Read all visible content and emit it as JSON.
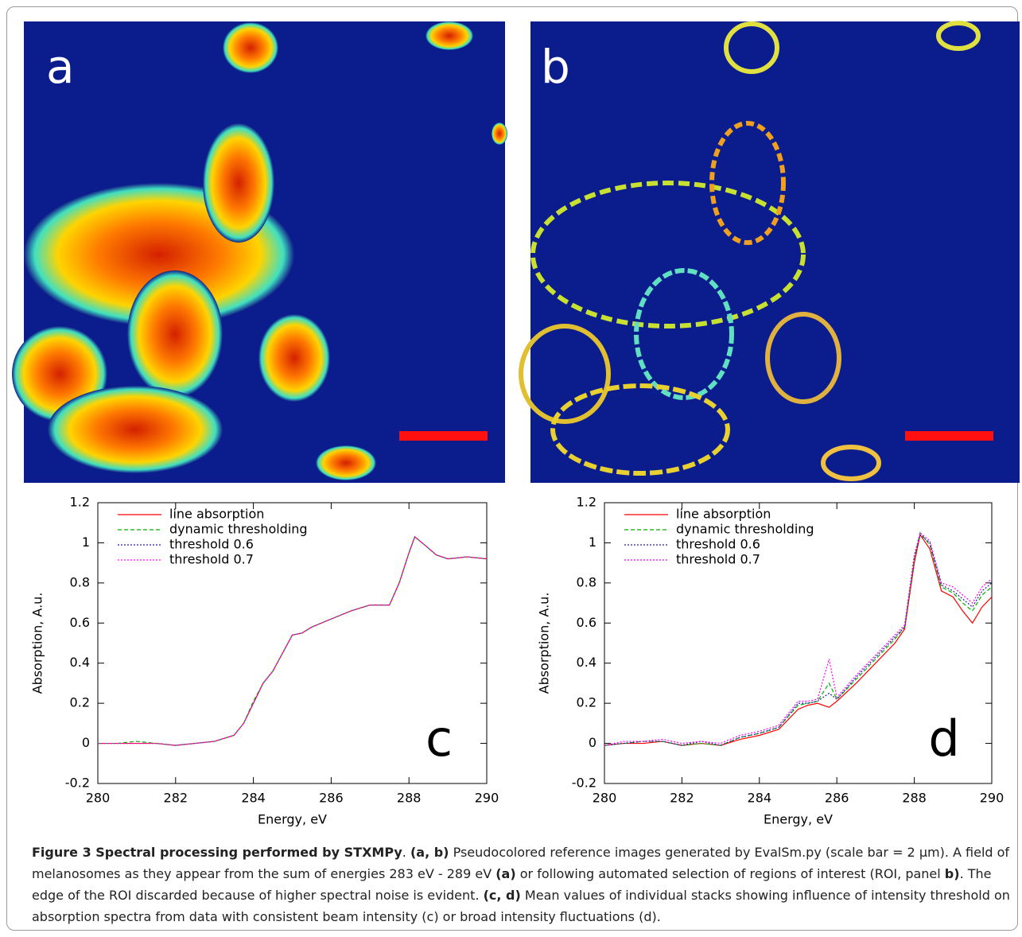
{
  "panels": [
    {
      "label": "a"
    },
    {
      "label": "b"
    }
  ],
  "chart_data": [
    {
      "type": "line",
      "annotation": "c",
      "xlabel": "Energy, eV",
      "ylabel": "Absorption, A.u.",
      "x": [
        280,
        280.5,
        281,
        281.5,
        282,
        282.5,
        283,
        283.5,
        283.75,
        284,
        284.25,
        284.5,
        284.75,
        285,
        285.25,
        285.5,
        286,
        286.5,
        287,
        287.5,
        287.75,
        288,
        288.15,
        288.4,
        288.7,
        289,
        289.5,
        290
      ],
      "series": [
        {
          "name": "line absorption",
          "color": "#ff0000",
          "line_style": "solid",
          "values": [
            0,
            0,
            0,
            0,
            -0.01,
            0,
            0.01,
            0.04,
            0.1,
            0.2,
            0.3,
            0.36,
            0.45,
            0.54,
            0.55,
            0.58,
            0.62,
            0.66,
            0.69,
            0.69,
            0.8,
            0.95,
            1.03,
            0.99,
            0.94,
            0.92,
            0.93,
            0.92
          ]
        },
        {
          "name": "dynamic thresholding",
          "color": "#00b000",
          "line_style": "dashed",
          "values": [
            0,
            0,
            0.01,
            0,
            -0.01,
            0,
            0.01,
            0.04,
            0.1,
            0.21,
            0.3,
            0.36,
            0.45,
            0.54,
            0.55,
            0.58,
            0.62,
            0.66,
            0.69,
            0.69,
            0.8,
            0.95,
            1.03,
            0.99,
            0.94,
            0.92,
            0.93,
            0.92
          ]
        },
        {
          "name": "threshold 0.6",
          "color": "#2020a0",
          "line_style": "dotted",
          "values": [
            0,
            0,
            0,
            0,
            -0.01,
            0,
            0.01,
            0.04,
            0.1,
            0.2,
            0.3,
            0.36,
            0.45,
            0.54,
            0.55,
            0.58,
            0.62,
            0.66,
            0.69,
            0.69,
            0.8,
            0.95,
            1.03,
            0.99,
            0.94,
            0.92,
            0.93,
            0.92
          ]
        },
        {
          "name": "threshold 0.7",
          "color": "#ff00ff",
          "line_style": "dotted",
          "values": [
            0,
            0,
            0,
            0,
            -0.01,
            0,
            0.01,
            0.04,
            0.1,
            0.2,
            0.3,
            0.36,
            0.45,
            0.54,
            0.55,
            0.58,
            0.62,
            0.66,
            0.69,
            0.69,
            0.8,
            0.95,
            1.03,
            0.99,
            0.94,
            0.92,
            0.93,
            0.92
          ]
        }
      ],
      "xlim": [
        280,
        290
      ],
      "xticks": [
        280,
        282,
        284,
        286,
        288,
        290
      ],
      "ylim": [
        -0.2,
        1.2
      ],
      "yticks": [
        -0.2,
        0,
        0.2,
        0.4,
        0.6,
        0.8,
        1,
        1.2
      ]
    },
    {
      "type": "line",
      "annotation": "d",
      "xlabel": "Energy, eV",
      "ylabel": "Absorption, A.u.",
      "x": [
        280,
        280.5,
        281,
        281.5,
        282,
        282.5,
        283,
        283.5,
        284,
        284.5,
        285,
        285.25,
        285.5,
        285.8,
        286,
        286.5,
        287,
        287.5,
        287.75,
        288,
        288.15,
        288.4,
        288.7,
        289,
        289.25,
        289.5,
        289.75,
        290
      ],
      "series": [
        {
          "name": "line absorption",
          "color": "#ff0000",
          "line_style": "solid",
          "values": [
            -0.01,
            0,
            0,
            0.01,
            -0.01,
            0,
            -0.01,
            0.02,
            0.04,
            0.07,
            0.17,
            0.19,
            0.2,
            0.18,
            0.21,
            0.3,
            0.4,
            0.5,
            0.57,
            0.9,
            1.04,
            0.97,
            0.76,
            0.73,
            0.66,
            0.6,
            0.68,
            0.73
          ]
        },
        {
          "name": "dynamic thresholding",
          "color": "#00b000",
          "line_style": "dashed",
          "values": [
            -0.01,
            0,
            0.01,
            0.01,
            -0.01,
            0,
            -0.01,
            0.03,
            0.05,
            0.08,
            0.19,
            0.2,
            0.21,
            0.3,
            0.22,
            0.32,
            0.42,
            0.52,
            0.58,
            0.92,
            1.05,
            0.99,
            0.78,
            0.75,
            0.7,
            0.66,
            0.74,
            0.78
          ]
        },
        {
          "name": "threshold 0.6",
          "color": "#2020a0",
          "line_style": "dotted",
          "values": [
            -0.01,
            0,
            0.01,
            0.01,
            -0.01,
            0.01,
            -0.01,
            0.03,
            0.05,
            0.08,
            0.2,
            0.2,
            0.21,
            0.25,
            0.22,
            0.33,
            0.43,
            0.53,
            0.58,
            0.93,
            1.04,
            1,
            0.79,
            0.76,
            0.72,
            0.68,
            0.76,
            0.8
          ]
        },
        {
          "name": "threshold 0.7",
          "color": "#ff00ff",
          "line_style": "dotted",
          "values": [
            -0.01,
            0.01,
            0.01,
            0.02,
            0,
            0.01,
            0,
            0.04,
            0.06,
            0.09,
            0.21,
            0.21,
            0.22,
            0.42,
            0.23,
            0.34,
            0.44,
            0.54,
            0.59,
            0.94,
            1.05,
            1.01,
            0.8,
            0.78,
            0.74,
            0.7,
            0.78,
            0.82
          ]
        }
      ],
      "xlim": [
        280,
        290
      ],
      "xticks": [
        280,
        282,
        284,
        286,
        288,
        290
      ],
      "ylim": [
        -0.2,
        1.2
      ],
      "yticks": [
        -0.2,
        0,
        0.2,
        0.4,
        0.6,
        0.8,
        1,
        1.2
      ]
    }
  ],
  "caption": [
    {
      "text": "Figure 3 Spectral processing performed by STXMPy",
      "bold": true
    },
    {
      "text": ". ",
      "bold": false
    },
    {
      "text": "(a, b)",
      "bold": true
    },
    {
      "text": " Pseudocolored reference images generated by EvalSm.py (scale bar = 2 µm). A field of melanosomes as they appear from the sum of energies 283 eV - 289 eV ",
      "bold": false
    },
    {
      "text": "(a)",
      "bold": true
    },
    {
      "text": " or following automated selection of regions of interest (ROI, panel ",
      "bold": false
    },
    {
      "text": "b)",
      "bold": true
    },
    {
      "text": ". The edge of the ROI discarded because of higher spectral noise is evident. ",
      "bold": false
    },
    {
      "text": "(c, d)",
      "bold": true
    },
    {
      "text": " Mean values of individual stacks showing influence of intensity threshold on absorption spectra from data with consistent beam intensity (c) or broad intensity fluctuations (d).",
      "bold": false
    }
  ]
}
